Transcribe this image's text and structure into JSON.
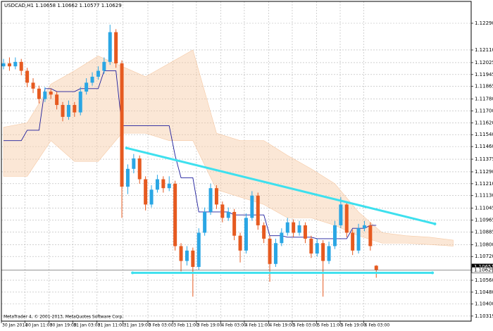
{
  "chart_data": {
    "type": "candlestick",
    "title": "USDCAD,H1  1.10658 1.10662 1.10577 1.10629",
    "footer": "MetaTrader 4, © 2001-2013, MetaQuotes Software Corp.",
    "grid": true,
    "xlim": [
      -0.36,
      79.04
    ],
    "ylim": [
      1.10285,
      1.12437
    ],
    "xticks": [
      {
        "value": -0.36,
        "label": "30 Jan 2014"
      },
      {
        "value": 3.6,
        "label": "30 Jan 11:00"
      },
      {
        "value": 7.7,
        "label": "30 Jan 19:00"
      },
      {
        "value": 11.7,
        "label": "31 Jan 03:00"
      },
      {
        "value": 15.8,
        "label": "31 Jan 11:00"
      },
      {
        "value": 20.2,
        "label": "31 Jan 19:00"
      },
      {
        "value": 24.4,
        "label": "3 Feb 03:00"
      },
      {
        "value": 28.6,
        "label": "3 Feb 11:00"
      },
      {
        "value": 32.6,
        "label": "3 Feb 19:00"
      },
      {
        "value": 36.7,
        "label": "4 Feb 03:00"
      },
      {
        "value": 40.7,
        "label": "4 Feb 11:00"
      },
      {
        "value": 44.8,
        "label": "4 Feb 19:00"
      },
      {
        "value": 48.8,
        "label": "5 Feb 03:00"
      },
      {
        "value": 52.9,
        "label": "5 Feb 11:00"
      },
      {
        "value": 56.9,
        "label": "5 Feb 19:00"
      },
      {
        "value": 60.9,
        "label": "6 Feb 03:00"
      }
    ],
    "yticks": [
      {
        "value": 1.1229,
        "label": "1.12290"
      },
      {
        "value": 1.1211,
        "label": "1.12110"
      },
      1.12025,
      1.11945,
      1.11865,
      {
        "value": 1.1178,
        "label": "1.11780"
      },
      {
        "value": 1.117,
        "label": "1.11700"
      },
      {
        "value": 1.1162,
        "label": "1.11620"
      },
      {
        "value": 1.1154,
        "label": "1.11540"
      },
      {
        "value": 1.1146,
        "label": "1.11460"
      },
      1.11375,
      {
        "value": 1.1129,
        "label": "1.11290"
      },
      {
        "value": 1.1121,
        "label": "1.11210"
      },
      {
        "value": 1.1113,
        "label": "1.11130"
      },
      1.11045,
      1.10965,
      1.10885,
      {
        "value": 1.108,
        "label": "1.10800"
      },
      {
        "value": 1.1072,
        "label": "1.10720"
      },
      {
        "value": 1.1056,
        "label": "1.10560"
      },
      {
        "value": 1.1048,
        "label": "1.10480"
      },
      {
        "value": 1.104,
        "label": "1.10400"
      },
      1.10319
    ],
    "price_labels": [
      1.10651,
      1.10629
    ],
    "colors": {
      "up": "#2aa6e4",
      "down": "#e65a20"
    },
    "ohlc": [
      [
        1.12,
        1.1205,
        1.1198,
        1.1202
      ],
      [
        1.1202,
        1.1206,
        1.1197,
        1.12
      ],
      [
        1.12,
        1.1206,
        1.1198,
        1.1203
      ],
      [
        1.1203,
        1.1205,
        1.1194,
        1.1197
      ],
      [
        1.1197,
        1.1199,
        1.1186,
        1.1189
      ],
      [
        1.1189,
        1.1192,
        1.1182,
        1.1185
      ],
      [
        1.1185,
        1.1187,
        1.1175,
        1.1178
      ],
      [
        1.1178,
        1.1186,
        1.1176,
        1.1183
      ],
      [
        1.1183,
        1.1185,
        1.1178,
        1.1181
      ],
      [
        1.1181,
        1.1183,
        1.1171,
        1.1174
      ],
      [
        1.1174,
        1.1176,
        1.1163,
        1.1166
      ],
      [
        1.1166,
        1.1177,
        1.1164,
        1.1174
      ],
      [
        1.1174,
        1.1176,
        1.1166,
        1.1169
      ],
      [
        1.1169,
        1.1186,
        1.1167,
        1.1183
      ],
      [
        1.1183,
        1.1192,
        1.1181,
        1.1189
      ],
      [
        1.1189,
        1.1196,
        1.1187,
        1.1193
      ],
      [
        1.1193,
        1.12,
        1.1191,
        1.1197
      ],
      [
        1.1197,
        1.1206,
        1.1195,
        1.1203
      ],
      [
        1.1203,
        1.1228,
        1.1201,
        1.1223
      ],
      [
        1.1223,
        1.1225,
        1.1199,
        1.1202
      ],
      [
        1.1202,
        1.1204,
        1.1098,
        1.1119
      ],
      [
        1.1119,
        1.1134,
        1.1114,
        1.1131
      ],
      [
        1.1131,
        1.1141,
        1.1128,
        1.1138
      ],
      [
        1.1138,
        1.114,
        1.1121,
        1.1124
      ],
      [
        1.1124,
        1.1126,
        1.1103,
        1.1107
      ],
      [
        1.1107,
        1.112,
        1.1105,
        1.1117
      ],
      [
        1.1117,
        1.1127,
        1.1115,
        1.1124
      ],
      [
        1.1124,
        1.1126,
        1.1115,
        1.1118
      ],
      [
        1.1118,
        1.1126,
        1.1116,
        1.1121
      ],
      [
        1.1121,
        1.1123,
        1.1076,
        1.1079
      ],
      [
        1.1079,
        1.1081,
        1.1062,
        1.1069
      ],
      [
        1.1069,
        1.1079,
        1.1066,
        1.1076
      ],
      [
        1.1076,
        1.1078,
        1.1045,
        1.1065
      ],
      [
        1.1065,
        1.1091,
        1.1063,
        1.1088
      ],
      [
        1.1088,
        1.1105,
        1.1086,
        1.1102
      ],
      [
        1.1102,
        1.1121,
        1.11,
        1.1118
      ],
      [
        1.1118,
        1.112,
        1.1104,
        1.1107
      ],
      [
        1.1107,
        1.1109,
        1.1095,
        1.1098
      ],
      [
        1.1098,
        1.1105,
        1.1096,
        1.1102
      ],
      [
        1.1102,
        1.1104,
        1.1083,
        1.1086
      ],
      [
        1.1086,
        1.1088,
        1.1068,
        1.1076
      ],
      [
        1.1076,
        1.1101,
        1.1074,
        1.1098
      ],
      [
        1.1098,
        1.1116,
        1.1096,
        1.1113
      ],
      [
        1.1113,
        1.1115,
        1.109,
        1.1093
      ],
      [
        1.1093,
        1.1095,
        1.1081,
        1.1084
      ],
      [
        1.1084,
        1.1086,
        1.1055,
        1.1067
      ],
      [
        1.1067,
        1.1084,
        1.1065,
        1.1081
      ],
      [
        1.1081,
        1.1091,
        1.1079,
        1.1088
      ],
      [
        1.1088,
        1.1098,
        1.1086,
        1.1095
      ],
      [
        1.1095,
        1.1097,
        1.1085,
        1.1088
      ],
      [
        1.1088,
        1.1096,
        1.1086,
        1.1093
      ],
      [
        1.1093,
        1.1095,
        1.1081,
        1.1084
      ],
      [
        1.1084,
        1.1086,
        1.1071,
        1.1074
      ],
      [
        1.1074,
        1.1084,
        1.1072,
        1.1081
      ],
      [
        1.1081,
        1.1083,
        1.1045,
        1.1069
      ],
      [
        1.1069,
        1.1082,
        1.1067,
        1.1079
      ],
      [
        1.1079,
        1.1096,
        1.1077,
        1.1093
      ],
      [
        1.1093,
        1.1112,
        1.1091,
        1.1107
      ],
      [
        1.1107,
        1.1109,
        1.1085,
        1.1088
      ],
      [
        1.1088,
        1.109,
        1.1073,
        1.1076
      ],
      [
        1.1076,
        1.1094,
        1.1074,
        1.1091
      ],
      [
        1.1091,
        1.1096,
        1.1089,
        1.1093
      ],
      [
        1.1093,
        1.1095,
        1.1076,
        1.1079
      ],
      [
        1.10658,
        1.10662,
        1.10577,
        1.10629
      ]
    ],
    "kijun": {
      "color": "#1c1c9c",
      "values": [
        1.115,
        1.115,
        1.115,
        1.115,
        1.1157,
        1.1157,
        1.1157,
        1.1185,
        1.1185,
        1.1183,
        1.1183,
        1.1183,
        1.1183,
        1.1185,
        1.1185,
        1.1185,
        1.1185,
        1.1197,
        1.1197,
        1.1197,
        1.116,
        1.116,
        1.116,
        1.116,
        1.116,
        1.116,
        1.116,
        1.116,
        1.116,
        1.114,
        1.1125,
        1.1125,
        1.1125,
        1.1102,
        1.1102,
        1.1102,
        1.1102,
        1.1102,
        1.1102,
        1.11,
        1.11,
        1.11,
        1.11,
        1.11,
        1.11,
        1.1086,
        1.1086,
        1.1086,
        1.1085,
        1.1085,
        1.1085,
        1.1085,
        1.1085,
        1.1084,
        1.1084,
        1.1084,
        1.1084,
        1.1084,
        1.1084,
        1.1091,
        1.1091,
        1.1091,
        1.1093,
        1.1093
      ]
    },
    "cloud": {
      "color": "#f6c9a4",
      "x": [
        0,
        4,
        8,
        12,
        16,
        20,
        24,
        28,
        32,
        36,
        40,
        44,
        48,
        52,
        56,
        60,
        64,
        68,
        72,
        76
      ],
      "top": [
        1.1159,
        1.1162,
        1.1188,
        1.1197,
        1.1207,
        1.12,
        1.1193,
        1.1202,
        1.1211,
        1.1155,
        1.115,
        1.115,
        1.114,
        1.1131,
        1.1121,
        1.1102,
        1.1088,
        1.1086,
        1.1085,
        1.1083
      ],
      "bottom": [
        1.1126,
        1.1126,
        1.115,
        1.1136,
        1.1136,
        1.1155,
        1.1155,
        1.115,
        1.115,
        1.1117,
        1.1112,
        1.1107,
        1.1098,
        1.1098,
        1.1093,
        1.1086,
        1.1081,
        1.1081,
        1.108,
        1.1079
      ]
    },
    "trendlines": [
      {
        "color": "#3ee0ee",
        "x": [
          20.8,
          72.9
        ],
        "y": [
          1.1145,
          1.1094
        ]
      },
      {
        "color": "#3ee0ee",
        "x": [
          21.8,
          72.5
        ],
        "y": [
          1.1061,
          1.1061
        ]
      }
    ]
  }
}
